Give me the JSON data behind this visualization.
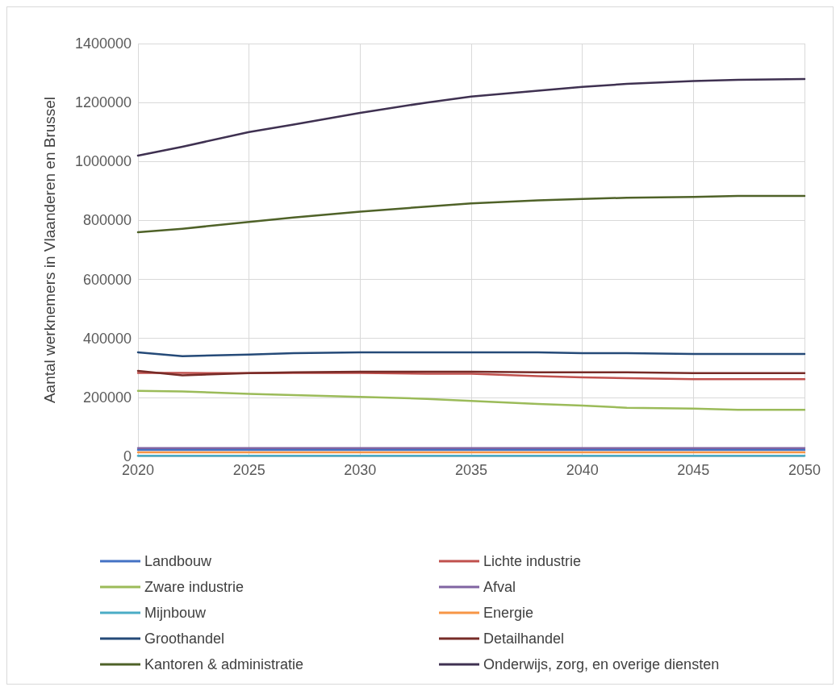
{
  "chart_data": {
    "type": "line",
    "ylabel": "Aantal werknemers in Vlaanderen en Brussel",
    "x": [
      2020,
      2022,
      2025,
      2027,
      2030,
      2033,
      2035,
      2038,
      2040,
      2042,
      2045,
      2047,
      2050
    ],
    "xlim": [
      2020,
      2050
    ],
    "xticks": [
      2020,
      2025,
      2030,
      2035,
      2040,
      2045,
      2050
    ],
    "ylim": [
      0,
      1400000
    ],
    "yticks": [
      0,
      200000,
      400000,
      600000,
      800000,
      1000000,
      1200000,
      1400000
    ],
    "grid": true,
    "legend": "bottom",
    "marker": "none",
    "line_style": "solid",
    "series": [
      {
        "name": "Landbouw",
        "color": "#4472c4",
        "values": [
          22000,
          22000,
          22000,
          22000,
          22000,
          22000,
          22000,
          22000,
          22000,
          22000,
          22000,
          22000,
          22000
        ]
      },
      {
        "name": "Lichte industrie",
        "color": "#c0504d",
        "values": [
          283000,
          283000,
          282000,
          283000,
          283000,
          280000,
          280000,
          272000,
          268000,
          265000,
          262000,
          262000,
          262000
        ]
      },
      {
        "name": "Zware industrie",
        "color": "#9bbb59",
        "values": [
          222000,
          220000,
          212000,
          208000,
          202000,
          195000,
          188000,
          178000,
          172000,
          165000,
          162000,
          158000,
          158000
        ]
      },
      {
        "name": "Afval",
        "color": "#8064a2",
        "values": [
          28000,
          28000,
          28000,
          28000,
          28000,
          28000,
          28000,
          28000,
          28000,
          28000,
          28000,
          28000,
          28000
        ]
      },
      {
        "name": "Mijnbouw",
        "color": "#4bacc6",
        "values": [
          2000,
          2000,
          2000,
          2000,
          2000,
          2000,
          2000,
          2000,
          2000,
          2000,
          2000,
          2000,
          2000
        ]
      },
      {
        "name": "Energie",
        "color": "#f79646",
        "values": [
          14000,
          14000,
          14000,
          14000,
          14000,
          14000,
          14000,
          14000,
          14000,
          14000,
          14000,
          14000,
          14000
        ]
      },
      {
        "name": "Groothandel",
        "color": "#254a78",
        "values": [
          353000,
          340000,
          345000,
          350000,
          353000,
          353000,
          353000,
          353000,
          350000,
          350000,
          347000,
          347000,
          347000
        ]
      },
      {
        "name": "Detailhandel",
        "color": "#772b27",
        "values": [
          290000,
          275000,
          282000,
          285000,
          287000,
          287000,
          287000,
          285000,
          285000,
          285000,
          282000,
          282000,
          282000
        ]
      },
      {
        "name": "Kantoren & administratie",
        "color": "#4f6228",
        "values": [
          760000,
          772000,
          795000,
          810000,
          830000,
          847000,
          858000,
          868000,
          873000,
          877000,
          880000,
          883000,
          883000
        ]
      },
      {
        "name": "Onderwijs, zorg, en overige diensten",
        "color": "#3f3151",
        "values": [
          1020000,
          1050000,
          1100000,
          1125000,
          1165000,
          1200000,
          1220000,
          1240000,
          1253000,
          1263000,
          1273000,
          1277000,
          1280000
        ]
      }
    ]
  }
}
